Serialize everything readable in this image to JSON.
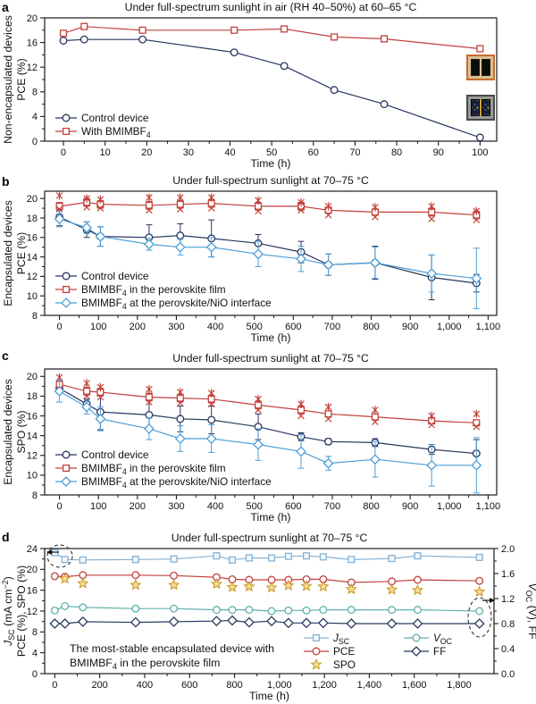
{
  "figure": {
    "panels": [
      {
        "letter": "a"
      },
      {
        "letter": "b"
      },
      {
        "letter": "c"
      },
      {
        "letter": "d"
      }
    ],
    "device_photos": [
      {
        "name": "device-with-bmimbf4-after-aging"
      },
      {
        "name": "control-device-after-aging"
      }
    ]
  },
  "chart_data": [
    {
      "id": "a",
      "type": "line",
      "title": "Under full-spectrum sunlight in air (RH 40–50%)  at 60–65 °C",
      "xlabel": "Time (h)",
      "ylabel_lines": [
        "Non-encapsulated devices",
        "PCE (%)"
      ],
      "xlim": [
        -4.5,
        104
      ],
      "ylim": [
        0,
        20
      ],
      "xticks": [
        0,
        10,
        20,
        30,
        40,
        50,
        60,
        70,
        80,
        90,
        100
      ],
      "xtick_labels": [
        "0",
        "10",
        "20",
        "30",
        "40",
        "50",
        "60",
        "70",
        "80",
        "90",
        "100"
      ],
      "yticks": [
        0,
        4,
        8,
        12,
        16,
        20
      ],
      "ytick_labels": [
        "0",
        "4",
        "8",
        "12",
        "16",
        "20"
      ],
      "grid": false,
      "legend_position": "lower-left",
      "series": [
        {
          "name": "Control device",
          "label": "Control device",
          "color": "#26365f",
          "marker": "circle",
          "fill": "#ffffff",
          "x": [
            0,
            5,
            19,
            41,
            53,
            65,
            77,
            100
          ],
          "y": [
            16.3,
            16.5,
            16.5,
            14.4,
            12.2,
            8.3,
            6.0,
            0.6
          ]
        },
        {
          "name": "With BMIMBF4",
          "label": "With BMIMBF_{4}",
          "color": "#c2413b",
          "marker": "square",
          "fill": "#ffffff",
          "x": [
            0,
            5,
            19,
            41,
            53,
            65,
            77,
            100
          ],
          "y": [
            17.5,
            18.6,
            18.0,
            18.0,
            18.2,
            16.9,
            16.6,
            15.0
          ]
        }
      ]
    },
    {
      "id": "b",
      "type": "line",
      "title": "Under full-spectrum sunlight at 70–75 °C",
      "xlabel": "Time (h)",
      "ylabel_lines": [
        "Encapsulated devices",
        "PCE (%)"
      ],
      "xlim": [
        -38,
        1122
      ],
      "ylim": [
        8,
        20.75
      ],
      "xticks": [
        0,
        100,
        200,
        300,
        400,
        500,
        600,
        700,
        800,
        900,
        1000,
        1100
      ],
      "xtick_labels": [
        "0",
        "100",
        "200",
        "300",
        "400",
        "500",
        "600",
        "700",
        "800",
        "900",
        "1,000",
        "1,100"
      ],
      "yticks": [
        8,
        10,
        12,
        14,
        16,
        18,
        20
      ],
      "ytick_labels": [
        "8",
        "10",
        "12",
        "14",
        "16",
        "18",
        "20"
      ],
      "grid": false,
      "legend_position": "lower-left",
      "series": [
        {
          "name": "Control device",
          "label": "Control device",
          "color": "#26365f",
          "marker": "circle",
          "fill": "#ffffff",
          "x": [
            0,
            70,
            105,
            230,
            310,
            390,
            510,
            620,
            690,
            810,
            955,
            1070
          ],
          "y": [
            18.1,
            16.8,
            16.1,
            16.0,
            16.2,
            15.9,
            15.4,
            14.5,
            13.2,
            13.4,
            11.9,
            11.3
          ],
          "err": [
            0.9,
            0.8,
            1.0,
            1.3,
            1.2,
            1.9,
            0.9,
            1.1,
            1.1,
            1.7,
            2.3,
            0.9
          ]
        },
        {
          "name": "BMIMBF4 in the perovskite film",
          "label": "BMIMBF_{4} in the perovskite film",
          "color": "#c2413b",
          "marker": "square",
          "fill": "#ffffff",
          "x": [
            0,
            70,
            105,
            230,
            310,
            390,
            510,
            620,
            690,
            810,
            955,
            1070
          ],
          "y": [
            19.2,
            19.6,
            19.4,
            19.3,
            19.4,
            19.5,
            19.2,
            19.2,
            18.8,
            18.6,
            18.6,
            18.3
          ],
          "err": [
            0.4,
            0.4,
            0.4,
            0.4,
            0.4,
            0.4,
            0.4,
            0.4,
            0.3,
            0.3,
            0.4,
            0.4
          ]
        },
        {
          "name": "individual devices above",
          "label": null,
          "color": "#c2413b",
          "marker": "asterisk",
          "line": false,
          "x": [
            0,
            70,
            105,
            230,
            310,
            390,
            510,
            620,
            690,
            810,
            955,
            1070
          ],
          "y": [
            20.3,
            20.0,
            19.9,
            20.1,
            20.1,
            20.1,
            19.8,
            19.6,
            19.2,
            19.1,
            19.2,
            18.7
          ]
        },
        {
          "name": "individual devices below",
          "label": null,
          "color": "#c2413b",
          "marker": "x",
          "line": false,
          "x": [
            0,
            70,
            105,
            230,
            310,
            390,
            510,
            620,
            690,
            810,
            955,
            1070
          ],
          "y": [
            18.9,
            19.1,
            19.0,
            18.8,
            18.9,
            19.0,
            18.7,
            18.8,
            18.3,
            18.1,
            17.9,
            17.8
          ]
        },
        {
          "name": "BMIMBF4 at the perovskite/NiO interface",
          "label": "BMIMBF_{4} at the perovskite/NiO interface",
          "color": "#4d9fd6",
          "marker": "diamond",
          "fill": "#ffffff",
          "x": [
            0,
            70,
            105,
            230,
            310,
            390,
            510,
            620,
            690,
            810,
            955,
            1070
          ],
          "y": [
            17.9,
            17.0,
            16.1,
            15.3,
            15.0,
            15.0,
            14.3,
            13.8,
            13.2,
            13.4,
            12.3,
            11.8
          ],
          "err": [
            0.8,
            0.6,
            1.0,
            0.6,
            0.8,
            1.0,
            1.3,
            1.3,
            1.1,
            1.6,
            1.9,
            3.1
          ]
        }
      ]
    },
    {
      "id": "c",
      "type": "line",
      "title": "Under full-spectrum sunlight at 70–75 °C",
      "xlabel": "Time (h)",
      "ylabel_lines": [
        "Encapsulated devices",
        "SPO (%)"
      ],
      "xlim": [
        -38,
        1122
      ],
      "ylim": [
        8,
        20.75
      ],
      "xticks": [
        0,
        100,
        200,
        300,
        400,
        500,
        600,
        700,
        800,
        900,
        1000,
        1100
      ],
      "xtick_labels": [
        "0",
        "100",
        "200",
        "300",
        "400",
        "500",
        "600",
        "700",
        "800",
        "900",
        "1,000",
        "1,100"
      ],
      "yticks": [
        8,
        10,
        12,
        14,
        16,
        18,
        20
      ],
      "ytick_labels": [
        "8",
        "10",
        "12",
        "14",
        "16",
        "18",
        "20"
      ],
      "grid": false,
      "legend_position": "lower-left",
      "series": [
        {
          "name": "Control device",
          "label": "Control device",
          "color": "#26365f",
          "marker": "circle",
          "fill": "#ffffff",
          "x": [
            0,
            70,
            105,
            230,
            310,
            390,
            510,
            620,
            690,
            810,
            955,
            1070
          ],
          "y": [
            18.8,
            17.2,
            16.4,
            16.1,
            15.7,
            15.6,
            14.9,
            13.9,
            13.4,
            13.3,
            12.6,
            12.2
          ],
          "err": [
            0.5,
            0.5,
            1.8,
            1.5,
            1.3,
            1.4,
            1.3,
            0.4,
            0.3,
            0.4,
            0.5,
            1.4
          ]
        },
        {
          "name": "BMIMBF4 in the perovskite film",
          "label": "BMIMBF_{4} in the perovskite film",
          "color": "#c2413b",
          "marker": "square",
          "fill": "#ffffff",
          "x": [
            0,
            70,
            105,
            230,
            310,
            390,
            510,
            620,
            690,
            810,
            955,
            1070
          ],
          "y": [
            19.2,
            18.5,
            18.4,
            17.9,
            17.8,
            17.7,
            17.1,
            16.6,
            16.2,
            15.9,
            15.5,
            15.3
          ],
          "err": [
            0.4,
            0.4,
            0.4,
            0.4,
            0.4,
            0.4,
            0.4,
            0.4,
            0.3,
            0.3,
            0.3,
            0.3
          ]
        },
        {
          "name": "individual devices above",
          "label": null,
          "color": "#c2413b",
          "marker": "asterisk",
          "line": false,
          "x": [
            0,
            70,
            105,
            230,
            310,
            390,
            510,
            620,
            690,
            810,
            955,
            1070
          ],
          "y": [
            19.9,
            19.3,
            18.9,
            18.7,
            18.4,
            18.3,
            17.7,
            17.2,
            16.9,
            16.6,
            16.0,
            16.2
          ]
        },
        {
          "name": "individual devices below",
          "label": null,
          "color": "#c2413b",
          "marker": "x",
          "line": false,
          "x": [
            0,
            70,
            105,
            230,
            310,
            390,
            510,
            620,
            690,
            810,
            955,
            1070
          ],
          "y": [
            18.7,
            18.0,
            17.9,
            17.4,
            17.3,
            17.2,
            16.6,
            16.0,
            15.7,
            15.4,
            15.1,
            14.9
          ]
        },
        {
          "name": "BMIMBF4 at the perovskite/NiO interface",
          "label": "BMIMBF_{4} at the perovskite/NiO interface",
          "color": "#4d9fd6",
          "marker": "diamond",
          "fill": "#ffffff",
          "x": [
            0,
            70,
            105,
            230,
            310,
            390,
            510,
            620,
            690,
            810,
            955,
            1070
          ],
          "y": [
            18.5,
            16.9,
            15.7,
            14.7,
            13.7,
            13.7,
            13.1,
            12.4,
            11.2,
            11.6,
            11.0,
            11.0
          ],
          "err": [
            1.1,
            0.7,
            1.2,
            1.1,
            1.3,
            1.4,
            1.6,
            1.7,
            0.7,
            1.8,
            2.1,
            2.8
          ]
        }
      ]
    },
    {
      "id": "d",
      "type": "line",
      "title": "Under full-spectrum sunlight at 70–75 °C",
      "xlabel": "Time (h)",
      "ylabel_lines": [
        "*J*_{SC} (mA cm^{−2})",
        "PCE (%), SPO (%)"
      ],
      "ylabel_right": "*V*_{OC} (V), FF",
      "xlim": [
        -45,
        1955
      ],
      "ylim": [
        0,
        24
      ],
      "y2lim": [
        0,
        2.0
      ],
      "xticks": [
        0,
        200,
        400,
        600,
        800,
        1000,
        1200,
        1400,
        1600,
        1800
      ],
      "xtick_labels": [
        "0",
        "200",
        "400",
        "600",
        "800",
        "1,000",
        "1,200",
        "1,400",
        "1,600",
        "1,800"
      ],
      "yticks": [
        0,
        4,
        8,
        12,
        16,
        20,
        24
      ],
      "ytick_labels": [
        "0",
        "4",
        "8",
        "12",
        "16",
        "20",
        "24"
      ],
      "y2ticks": [
        0,
        0.4,
        0.8,
        1.2,
        1.6,
        2.0
      ],
      "y2tick_labels": [
        "0.0",
        "0.4",
        "0.8",
        "1.2",
        "1.6",
        "2.0"
      ],
      "grid": false,
      "note_lines": [
        "The most-stable encapsulated device with",
        "BMIMBF_{4} in the perovskite film"
      ],
      "annotations": {
        "callout_left_axis": "first J_SC points read on left axis",
        "callout_right_axis": "V_OC and FF read on right axis"
      },
      "series": [
        {
          "name": "JSC",
          "label": "*J*_{SC}",
          "color": "#84b2d4",
          "marker": "square",
          "fill": "#f2f7fb",
          "x": [
            0,
            45,
            125,
            360,
            530,
            720,
            790,
            865,
            965,
            1040,
            1120,
            1195,
            1320,
            1500,
            1615,
            1890
          ],
          "y": [
            23.2,
            21.9,
            21.8,
            21.9,
            22.0,
            22.6,
            21.8,
            22.2,
            22.2,
            22.5,
            22.6,
            22.4,
            21.9,
            22.1,
            22.6,
            22.3
          ]
        },
        {
          "name": "PCE",
          "label": "PCE",
          "color": "#c2413b",
          "marker": "circle",
          "fill": "#ffffff",
          "x": [
            0,
            45,
            125,
            360,
            530,
            720,
            790,
            865,
            965,
            1040,
            1120,
            1195,
            1320,
            1500,
            1615,
            1890
          ],
          "y": [
            18.7,
            18.6,
            18.9,
            18.9,
            18.8,
            18.5,
            18.1,
            18.0,
            18.0,
            18.0,
            18.1,
            18.1,
            17.5,
            17.7,
            18.0,
            17.8
          ]
        },
        {
          "name": "SPO",
          "label": "SPO",
          "color": "#c8961e",
          "marker": "star",
          "fill": "#f5dd9c",
          "line": false,
          "x": [
            45,
            125,
            360,
            530,
            720,
            790,
            865,
            965,
            1040,
            1120,
            1195,
            1320,
            1500,
            1615,
            1890
          ],
          "y": [
            18.2,
            17.3,
            17.0,
            17.0,
            17.2,
            16.6,
            16.7,
            16.5,
            16.9,
            16.8,
            16.7,
            16.2,
            16.1,
            16.0,
            15.7
          ]
        },
        {
          "name": "VOC",
          "label": "*V*_{OC}",
          "color": "#5fb0aa",
          "marker": "circle",
          "fill": "#ffffff",
          "axis": "right",
          "x": [
            0,
            45,
            125,
            360,
            530,
            720,
            790,
            865,
            965,
            1040,
            1120,
            1195,
            1320,
            1500,
            1615,
            1890
          ],
          "y": [
            1.01,
            1.08,
            1.06,
            1.04,
            1.04,
            1.02,
            1.02,
            1.02,
            1.0,
            1.01,
            1.01,
            1.02,
            1.02,
            1.02,
            1.02,
            1.0
          ]
        },
        {
          "name": "FF",
          "label": "FF",
          "color": "#2a3a60",
          "marker": "diamond",
          "fill": "#ffffff",
          "axis": "right",
          "x": [
            0,
            45,
            125,
            360,
            530,
            720,
            790,
            865,
            965,
            1040,
            1120,
            1195,
            1320,
            1500,
            1615,
            1890
          ],
          "y": [
            0.8,
            0.8,
            0.83,
            0.82,
            0.83,
            0.84,
            0.85,
            0.82,
            0.84,
            0.81,
            0.81,
            0.81,
            0.8,
            0.8,
            0.8,
            0.8
          ]
        }
      ]
    }
  ]
}
